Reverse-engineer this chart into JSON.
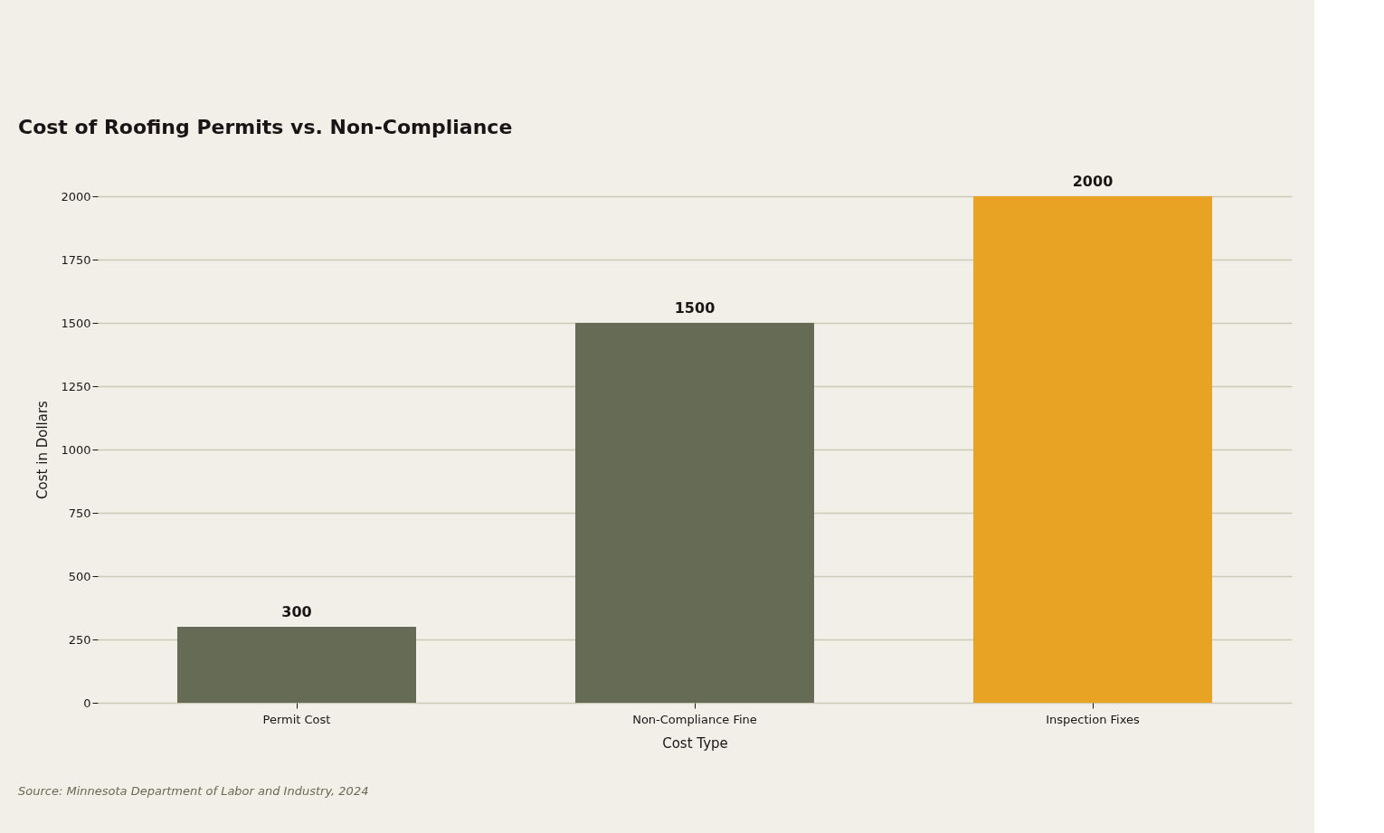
{
  "chart_data": {
    "type": "bar",
    "title": "Cost of Roofing Permits vs. Non-Compliance",
    "xlabel": "Cost Type",
    "ylabel": "Cost in Dollars",
    "categories": [
      "Permit Cost",
      "Non-Compliance Fine",
      "Inspection Fixes"
    ],
    "values": [
      300,
      1500,
      2000
    ],
    "colors": [
      "#666b55",
      "#666b55",
      "#e8a325"
    ],
    "ylim": [
      0,
      2000
    ],
    "yticks": [
      0,
      250,
      500,
      750,
      1000,
      1250,
      1500,
      1750,
      2000
    ],
    "grid": "y",
    "data_labels": true,
    "annotations": [
      "Source: Minnesota Department of Labor and Industry, 2024"
    ]
  }
}
